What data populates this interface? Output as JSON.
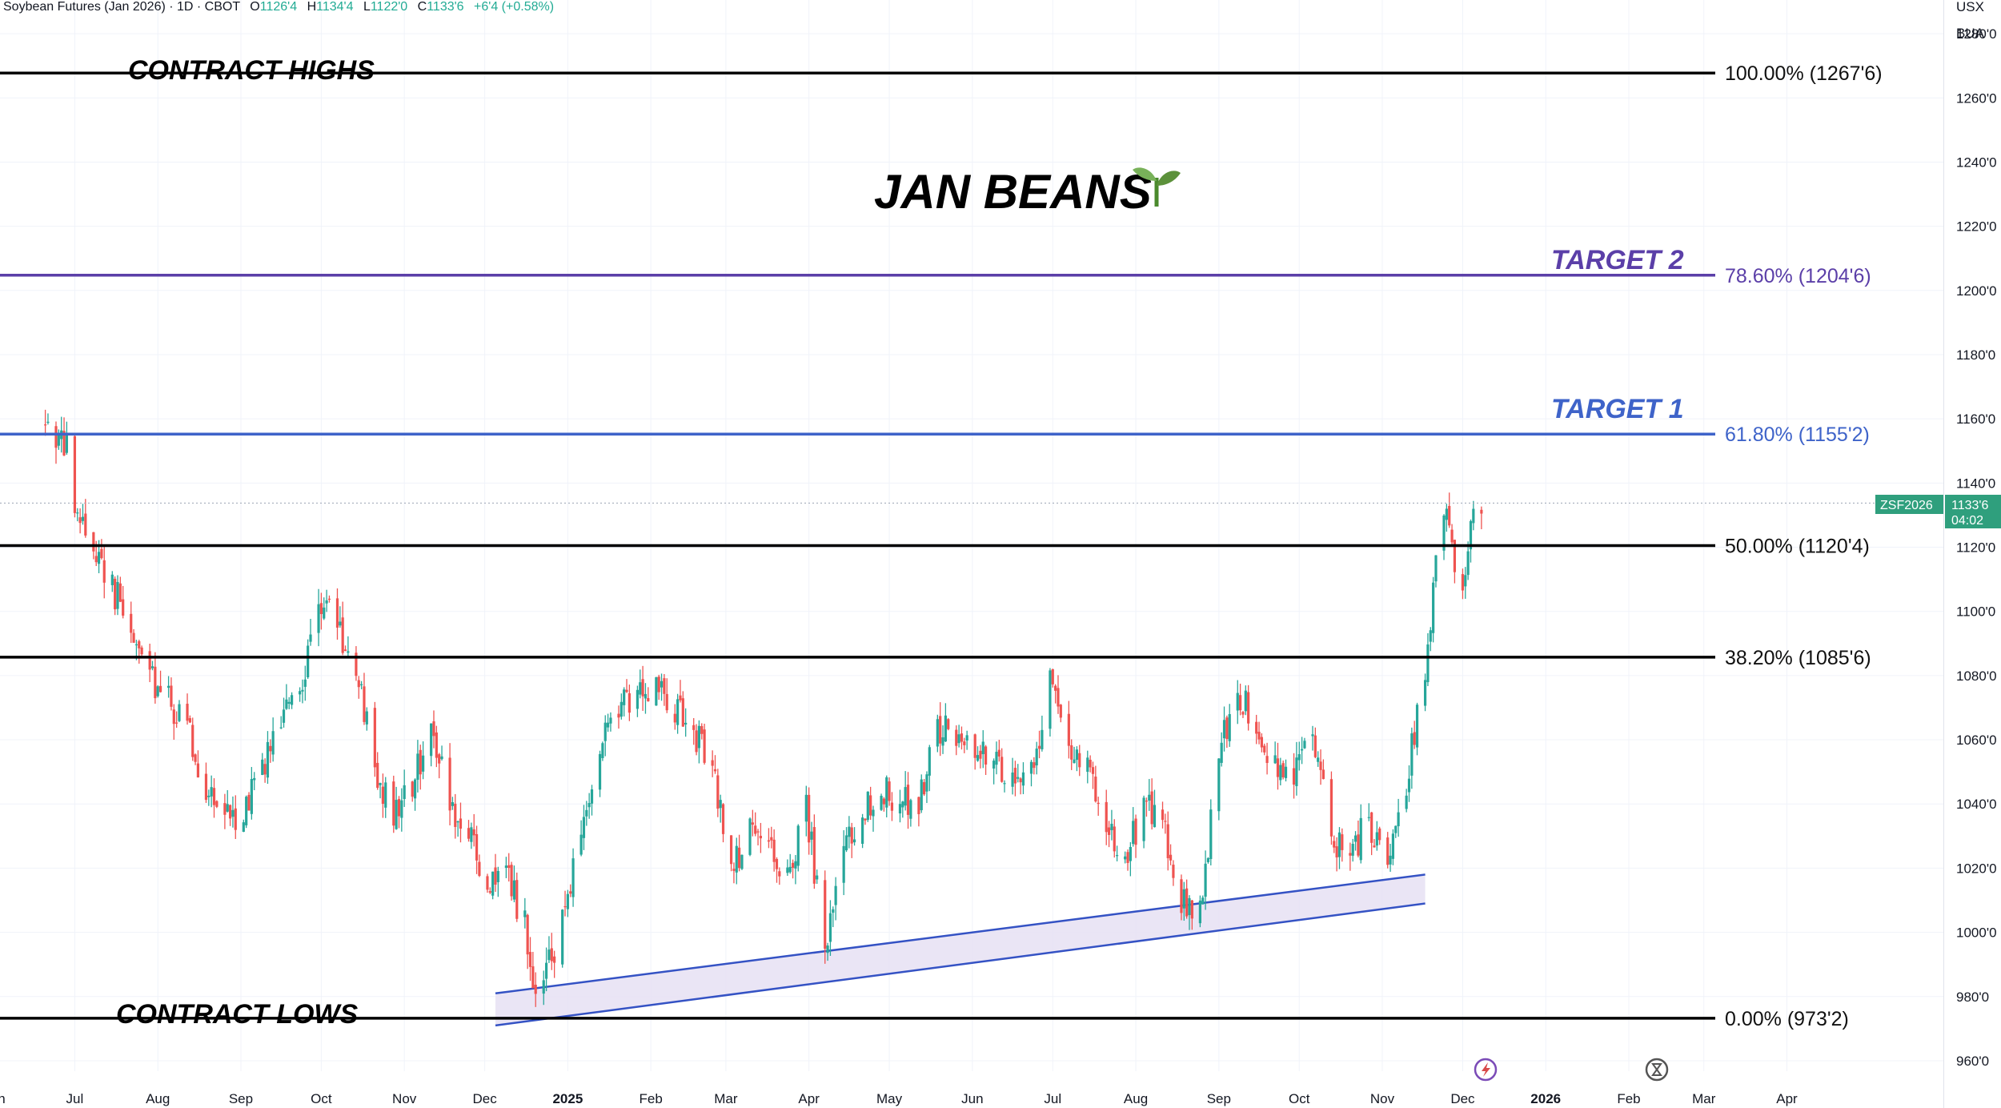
{
  "header": {
    "symbol": "Soybean Futures (Jan 2026) · 1D · CBOT",
    "o_label": "O",
    "o_value": "1126'4",
    "h_label": "H",
    "h_value": "1134'4",
    "l_label": "L",
    "l_value": "1122'0",
    "c_label": "C",
    "c_value": "1133'6",
    "change": "+6'4 (+0.58%)"
  },
  "currency": "USX",
  "unit": "BUA",
  "title": "JAN BEANS",
  "annotations": {
    "contract_highs": "CONTRACT HIGHS",
    "contract_lows": "CONTRACT LOWS",
    "target_1": "TARGET 1",
    "target_2": "TARGET 2"
  },
  "price_badge": {
    "symbol": "ZSF2026",
    "price": "1133'6",
    "countdown": "04:02"
  },
  "colors": {
    "up": "#26a69a",
    "down": "#ef5350",
    "target2": "#5b3fa8",
    "target1": "#3e63c9",
    "channel_fill": "#e6e0f3",
    "channel_line": "#3452c4"
  },
  "icons": [
    "lightning-icon",
    "hourglass-icon"
  ],
  "chart_data": {
    "type": "candlestick",
    "ylim": [
      953,
      1290
    ],
    "yticks": [
      {
        "value": 1280,
        "label": "1280'0"
      },
      {
        "value": 1260,
        "label": "1260'0"
      },
      {
        "value": 1240,
        "label": "1240'0"
      },
      {
        "value": 1220,
        "label": "1220'0"
      },
      {
        "value": 1200,
        "label": "1200'0"
      },
      {
        "value": 1180,
        "label": "1180'0"
      },
      {
        "value": 1160,
        "label": "1160'0"
      },
      {
        "value": 1140,
        "label": "1140'0"
      },
      {
        "value": 1120,
        "label": "1120'0"
      },
      {
        "value": 1100,
        "label": "1100'0"
      },
      {
        "value": 1080,
        "label": "1080'0"
      },
      {
        "value": 1060,
        "label": "1060'0"
      },
      {
        "value": 1040,
        "label": "1040'0"
      },
      {
        "value": 1020,
        "label": "1020'0"
      },
      {
        "value": 1000,
        "label": "1000'0"
      },
      {
        "value": 980,
        "label": "980'0"
      },
      {
        "value": 960,
        "label": "960'0"
      }
    ],
    "xticks": [
      {
        "date": "2024-06-01",
        "label": "Jun",
        "bold": false
      },
      {
        "date": "2024-07-01",
        "label": "Jul",
        "bold": false
      },
      {
        "date": "2024-08-01",
        "label": "Aug",
        "bold": false
      },
      {
        "date": "2024-09-01",
        "label": "Sep",
        "bold": false
      },
      {
        "date": "2024-10-01",
        "label": "Oct",
        "bold": false
      },
      {
        "date": "2024-11-01",
        "label": "Nov",
        "bold": false
      },
      {
        "date": "2024-12-01",
        "label": "Dec",
        "bold": false
      },
      {
        "date": "2025-01-01",
        "label": "2025",
        "bold": true
      },
      {
        "date": "2025-02-01",
        "label": "Feb",
        "bold": false
      },
      {
        "date": "2025-03-01",
        "label": "Mar",
        "bold": false
      },
      {
        "date": "2025-04-01",
        "label": "Apr",
        "bold": false
      },
      {
        "date": "2025-05-01",
        "label": "May",
        "bold": false
      },
      {
        "date": "2025-06-01",
        "label": "Jun",
        "bold": false
      },
      {
        "date": "2025-07-01",
        "label": "Jul",
        "bold": false
      },
      {
        "date": "2025-08-01",
        "label": "Aug",
        "bold": false
      },
      {
        "date": "2025-09-01",
        "label": "Sep",
        "bold": false
      },
      {
        "date": "2025-10-01",
        "label": "Oct",
        "bold": false
      },
      {
        "date": "2025-11-01",
        "label": "Nov",
        "bold": false
      },
      {
        "date": "2025-12-01",
        "label": "Dec",
        "bold": false
      },
      {
        "date": "2026-01-01",
        "label": "2026",
        "bold": true
      },
      {
        "date": "2026-02-01",
        "label": "Feb",
        "bold": false
      },
      {
        "date": "2026-03-01",
        "label": "Mar",
        "bold": false
      },
      {
        "date": "2026-04-01",
        "label": "Apr",
        "bold": false
      }
    ],
    "fib_levels": [
      {
        "label": "100.00% (1267'6)",
        "value": 1267.75,
        "style": "black"
      },
      {
        "label": "78.60% (1204'6)",
        "value": 1204.75,
        "style": "target2"
      },
      {
        "label": "61.80% (1155'2)",
        "value": 1155.25,
        "style": "target1"
      },
      {
        "label": "50.00% (1120'4)",
        "value": 1120.5,
        "style": "black"
      },
      {
        "label": "38.20% (1085'6)",
        "value": 1085.75,
        "style": "black"
      },
      {
        "label": "0.00% (973'2)",
        "value": 973.25,
        "style": "black"
      }
    ],
    "last_price": 1133.75,
    "channel": {
      "upper": [
        {
          "date": "2024-12-05",
          "value": 981
        },
        {
          "date": "2025-11-17",
          "value": 1018
        }
      ],
      "lower": [
        {
          "date": "2024-12-05",
          "value": 971
        },
        {
          "date": "2025-11-17",
          "value": 1009
        }
      ]
    },
    "price_path": [
      [
        "2024-06-20",
        1158
      ],
      [
        "2024-06-28",
        1150
      ],
      [
        "2024-07-01",
        1129
      ],
      [
        "2024-07-08",
        1121
      ],
      [
        "2024-07-15",
        1108
      ],
      [
        "2024-07-22",
        1093
      ],
      [
        "2024-07-29",
        1080
      ],
      [
        "2024-08-05",
        1072
      ],
      [
        "2024-08-12",
        1063
      ],
      [
        "2024-08-19",
        1046
      ],
      [
        "2024-08-26",
        1036
      ],
      [
        "2024-09-02",
        1038
      ],
      [
        "2024-09-09",
        1052
      ],
      [
        "2024-09-16",
        1068
      ],
      [
        "2024-09-23",
        1076
      ],
      [
        "2024-09-30",
        1103
      ],
      [
        "2024-10-03",
        1106
      ],
      [
        "2024-10-07",
        1094
      ],
      [
        "2024-10-14",
        1082
      ],
      [
        "2024-10-21",
        1050
      ],
      [
        "2024-10-28",
        1035
      ],
      [
        "2024-11-04",
        1046
      ],
      [
        "2024-11-11",
        1066
      ],
      [
        "2024-11-18",
        1040
      ],
      [
        "2024-11-25",
        1030
      ],
      [
        "2024-12-02",
        1014
      ],
      [
        "2024-12-09",
        1018
      ],
      [
        "2024-12-16",
        1003
      ],
      [
        "2024-12-20",
        978
      ],
      [
        "2024-12-27",
        995
      ],
      [
        "2025-01-06",
        1030
      ],
      [
        "2025-01-13",
        1058
      ],
      [
        "2025-01-20",
        1068
      ],
      [
        "2025-01-27",
        1076
      ],
      [
        "2025-02-03",
        1078
      ],
      [
        "2025-02-10",
        1070
      ],
      [
        "2025-02-17",
        1062
      ],
      [
        "2025-02-24",
        1052
      ],
      [
        "2025-03-03",
        1020
      ],
      [
        "2025-03-10",
        1030
      ],
      [
        "2025-03-17",
        1025
      ],
      [
        "2025-03-24",
        1018
      ],
      [
        "2025-03-31",
        1040
      ],
      [
        "2025-04-07",
        992
      ],
      [
        "2025-04-14",
        1025
      ],
      [
        "2025-04-21",
        1038
      ],
      [
        "2025-04-28",
        1044
      ],
      [
        "2025-05-05",
        1042
      ],
      [
        "2025-05-12",
        1040
      ],
      [
        "2025-05-19",
        1062
      ],
      [
        "2025-05-26",
        1063
      ],
      [
        "2025-06-02",
        1058
      ],
      [
        "2025-06-09",
        1055
      ],
      [
        "2025-06-16",
        1046
      ],
      [
        "2025-06-23",
        1050
      ],
      [
        "2025-06-30",
        1078
      ],
      [
        "2025-07-07",
        1060
      ],
      [
        "2025-07-14",
        1050
      ],
      [
        "2025-07-21",
        1036
      ],
      [
        "2025-07-28",
        1022
      ],
      [
        "2025-08-04",
        1040
      ],
      [
        "2025-08-11",
        1036
      ],
      [
        "2025-08-18",
        1010
      ],
      [
        "2025-08-25",
        1005
      ],
      [
        "2025-09-01",
        1055
      ],
      [
        "2025-09-08",
        1075
      ],
      [
        "2025-09-15",
        1065
      ],
      [
        "2025-09-22",
        1052
      ],
      [
        "2025-09-29",
        1048
      ],
      [
        "2025-10-06",
        1065
      ],
      [
        "2025-10-13",
        1030
      ],
      [
        "2025-10-20",
        1024
      ],
      [
        "2025-10-27",
        1035
      ],
      [
        "2025-11-03",
        1018
      ],
      [
        "2025-11-10",
        1045
      ],
      [
        "2025-11-14",
        1068
      ],
      [
        "2025-11-18",
        1088
      ],
      [
        "2025-11-21",
        1112
      ],
      [
        "2025-11-24",
        1130
      ],
      [
        "2025-11-27",
        1120
      ],
      [
        "2025-12-01",
        1106
      ],
      [
        "2025-12-04",
        1126
      ],
      [
        "2025-12-08",
        1134
      ]
    ]
  }
}
